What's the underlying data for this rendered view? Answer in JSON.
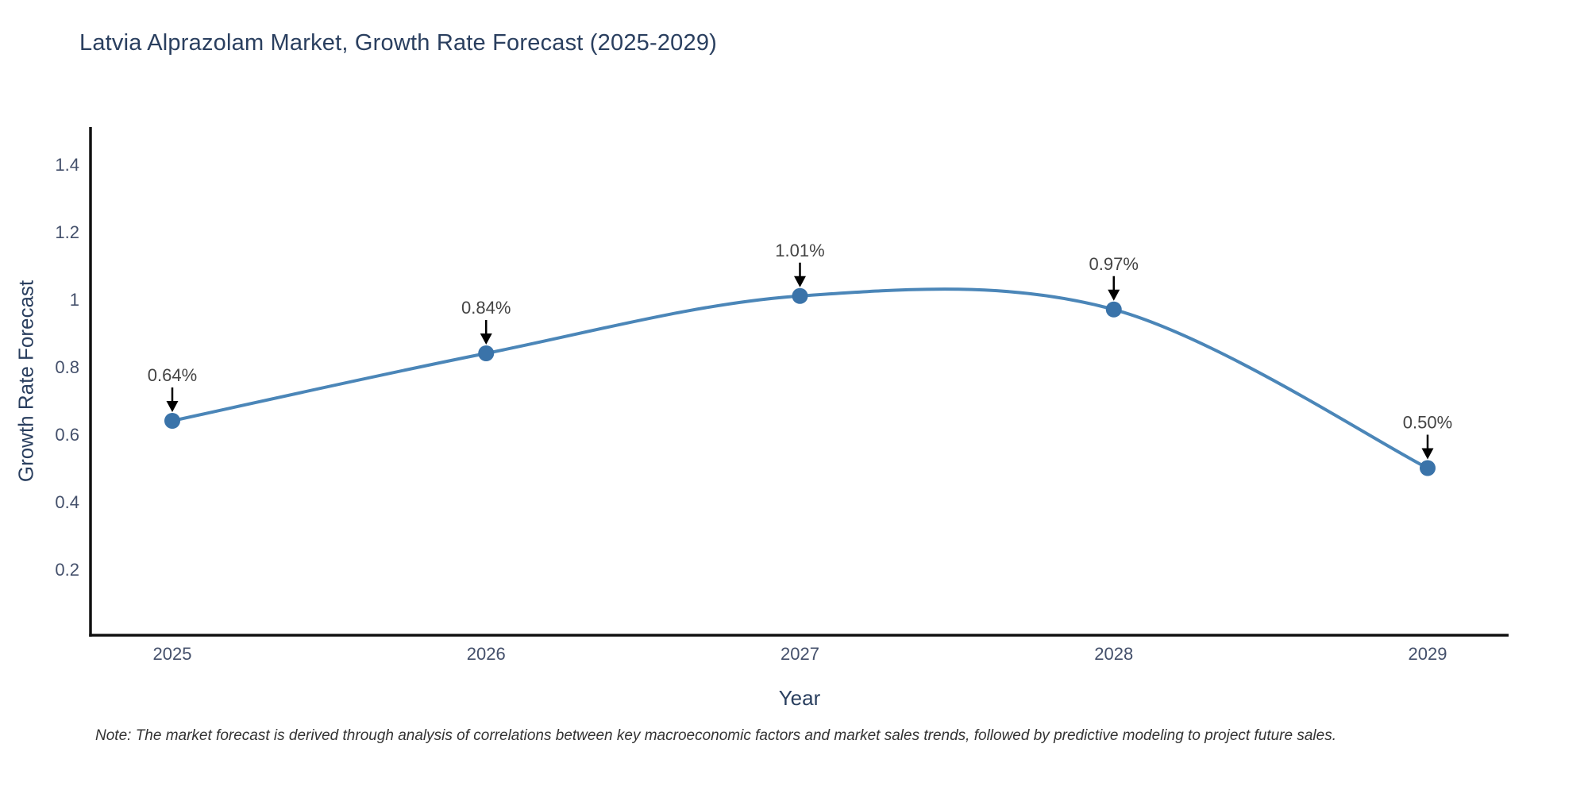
{
  "chart_data": {
    "type": "line",
    "title": "Latvia Alprazolam Market, Growth Rate Forecast (2025-2029)",
    "xlabel": "Year",
    "ylabel": "Growth Rate Forecast",
    "x": [
      2025,
      2026,
      2027,
      2028,
      2029
    ],
    "series": [
      {
        "name": "Growth Rate Forecast",
        "values": [
          0.64,
          0.84,
          1.01,
          0.97,
          0.5
        ],
        "point_labels": [
          "0.64%",
          "0.84%",
          "1.01%",
          "0.97%",
          "0.50%"
        ]
      }
    ],
    "x_tick_labels": [
      "2025",
      "2026",
      "2027",
      "2028",
      "2029"
    ],
    "y_ticks": [
      0.2,
      0.4,
      0.6,
      0.8,
      1,
      1.2,
      1.4
    ],
    "y_tick_labels": [
      "0.2",
      "0.4",
      "0.6",
      "0.8",
      "1",
      "1.2",
      "1.4"
    ],
    "ylim": [
      0,
      1.51
    ],
    "grid": false,
    "legend": "none",
    "line_shape": "spline",
    "annotations_have_arrows": true,
    "colors": {
      "line": "#4b86b8",
      "marker": "#3a73a9",
      "axis": "#111111",
      "title": "#2a3f5f",
      "axis_label": "#2a3f5f",
      "tick_label": "#44506b",
      "annotation_text": "#444444",
      "annotation_arrow": "#000000"
    }
  },
  "note": "Note: The market forecast is derived through analysis of correlations between key macroeconomic factors and market sales trends, followed by predictive modeling to project future sales."
}
